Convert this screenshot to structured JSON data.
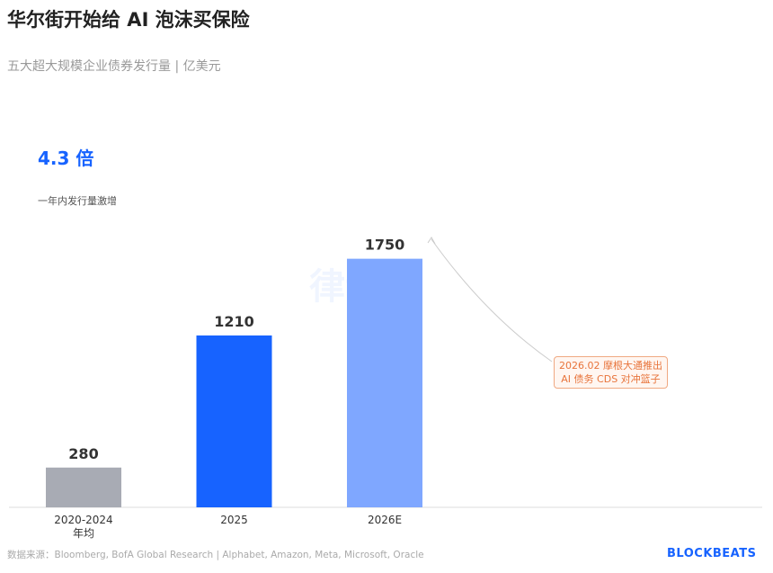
{
  "title": "华尔街开始给 AI 泡沫买保险",
  "subtitle": "五大超大规模企业债券发行量 | 亿美元",
  "highlight": {
    "value": "4.3 倍",
    "label": "一年内发行量激增"
  },
  "annotation": {
    "line1": "2026.02 摩根大通推出",
    "line2": "AI 债务 CDS 对冲篮子"
  },
  "source": "数据来源：Bloomberg, BofA Global Research | Alphabet, Amazon, Meta, Microsoft, Oracle",
  "brand": "BLOCKBEATS",
  "watermark": "律动 BLOCKBEATS",
  "chart_data": {
    "type": "bar",
    "categories": [
      "2020-2024\n年均",
      "2025",
      "2026E"
    ],
    "values": [
      280,
      1210,
      1750
    ],
    "colors": [
      "#a8abb4",
      "#1763ff",
      "#7fa7ff"
    ],
    "ylim": [
      0,
      2000
    ],
    "grid": false
  }
}
